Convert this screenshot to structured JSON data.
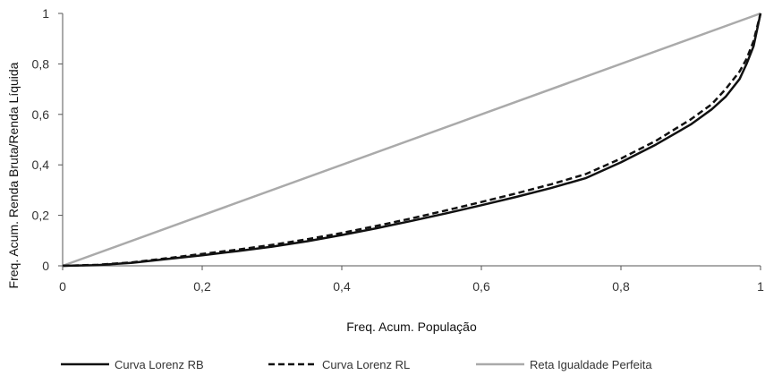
{
  "chart_data": {
    "type": "line",
    "xlabel": "Freq. Acum. População",
    "ylabel": "Freq. Acum. Renda Bruta/Renda Líquida",
    "xlim": [
      0,
      1
    ],
    "ylim": [
      0,
      1
    ],
    "x_ticks": [
      0,
      0.2,
      0.4,
      0.6,
      0.8,
      1
    ],
    "x_tick_labels": [
      "0",
      "0,2",
      "0,4",
      "0,6",
      "0,8",
      "1"
    ],
    "y_ticks": [
      0,
      0.2,
      0.4,
      0.6,
      0.8,
      1
    ],
    "y_tick_labels": [
      "0",
      "0,2",
      "0,4",
      "0,6",
      "0,8",
      "1"
    ],
    "grid": false,
    "legend_position": "bottom",
    "series": [
      {
        "name": "Curva Lorenz RB",
        "color": "#111111",
        "style": "solid",
        "x": [
          0,
          0.05,
          0.1,
          0.15,
          0.2,
          0.25,
          0.3,
          0.35,
          0.4,
          0.45,
          0.5,
          0.55,
          0.6,
          0.65,
          0.7,
          0.75,
          0.8,
          0.85,
          0.9,
          0.93,
          0.95,
          0.97,
          0.98,
          0.99,
          1
        ],
        "y": [
          0,
          0.003,
          0.012,
          0.027,
          0.042,
          0.058,
          0.076,
          0.097,
          0.122,
          0.149,
          0.178,
          0.208,
          0.24,
          0.273,
          0.308,
          0.348,
          0.41,
          0.48,
          0.56,
          0.62,
          0.67,
          0.74,
          0.8,
          0.87,
          1
        ]
      },
      {
        "name": "Curva Lorenz RL",
        "color": "#111111",
        "style": "dashed",
        "x": [
          0,
          0.05,
          0.1,
          0.15,
          0.2,
          0.25,
          0.3,
          0.35,
          0.4,
          0.45,
          0.5,
          0.55,
          0.6,
          0.65,
          0.7,
          0.75,
          0.8,
          0.85,
          0.9,
          0.93,
          0.95,
          0.97,
          0.98,
          0.99,
          1
        ],
        "y": [
          0,
          0.004,
          0.014,
          0.03,
          0.047,
          0.064,
          0.083,
          0.105,
          0.13,
          0.158,
          0.188,
          0.22,
          0.253,
          0.287,
          0.323,
          0.364,
          0.425,
          0.495,
          0.58,
          0.64,
          0.7,
          0.77,
          0.82,
          0.89,
          1
        ]
      },
      {
        "name": "Reta Igualdade Perfeita",
        "color": "#aaaaaa",
        "style": "solid",
        "x": [
          0,
          1
        ],
        "y": [
          0,
          1
        ]
      }
    ]
  }
}
